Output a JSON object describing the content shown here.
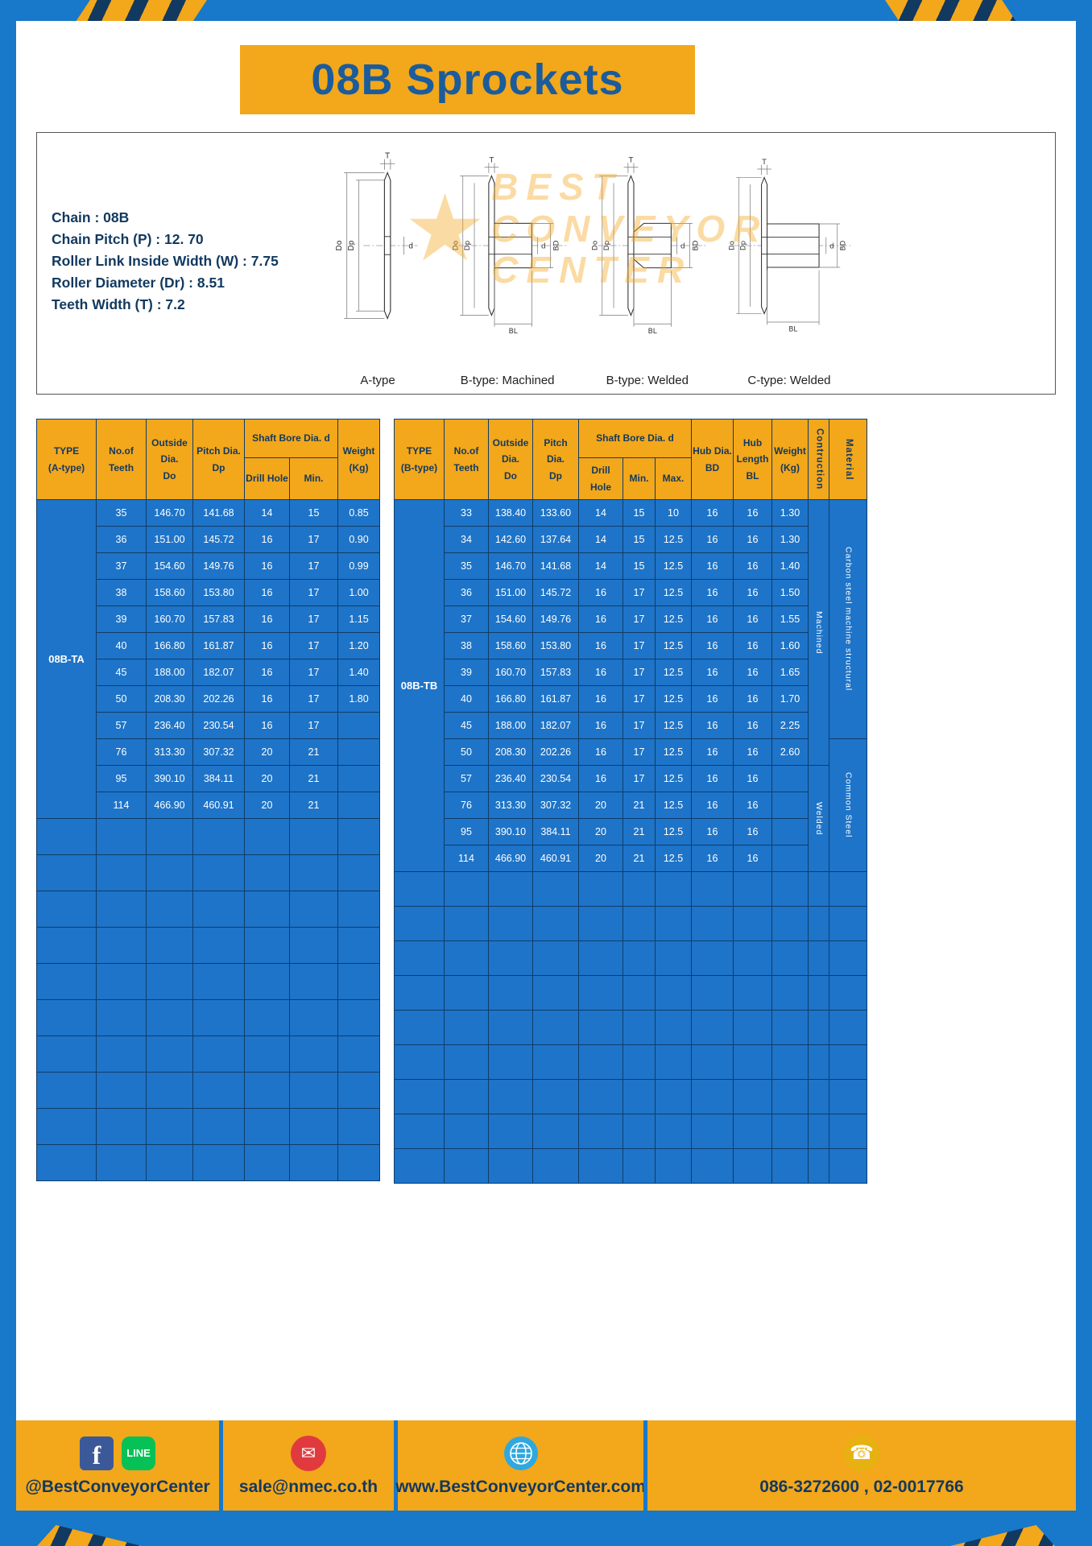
{
  "page": {
    "title": "08B Sprockets"
  },
  "specs": [
    "Chain : 08B",
    "Chain Pitch (P) : 12. 70",
    "Roller Link Inside Width (W) : 7.75",
    "Roller Diameter (Dr) : 8.51",
    "Teeth Width (T) : 7.2"
  ],
  "drawings": {
    "watermark_star": "★",
    "watermark": [
      "BEST",
      "CONVEYOR",
      "CENTER"
    ],
    "items": [
      {
        "caption": "A-type",
        "labels": [
          "T",
          "Do",
          "Dp",
          "d"
        ]
      },
      {
        "caption": "B-type: Machined",
        "labels": [
          "T",
          "Do",
          "Dp",
          "d",
          "BD",
          "BL"
        ]
      },
      {
        "caption": "B-type: Welded",
        "labels": [
          "T",
          "Do",
          "Dp",
          "d",
          "BD",
          "BL"
        ]
      },
      {
        "caption": "C-type: Welded",
        "labels": [
          "T",
          "Do",
          "Dp",
          "d",
          "BD",
          "BL"
        ]
      }
    ]
  },
  "table_a": {
    "headers": {
      "type": "TYPE\n(A-type)",
      "teeth": "No.of\nTeeth",
      "outside": "Outside\nDia.\nDo",
      "pitch": "Pitch Dia.\nDp",
      "shaft_bore": "Shaft Bore Dia. d",
      "drill": "Drill Hole",
      "min": "Min.",
      "weight": "Weight\n(Kg)"
    },
    "type_label": "08B-TA",
    "rows": [
      [
        "35",
        "146.70",
        "141.68",
        "14",
        "15",
        "0.85"
      ],
      [
        "36",
        "151.00",
        "145.72",
        "16",
        "17",
        "0.90"
      ],
      [
        "37",
        "154.60",
        "149.76",
        "16",
        "17",
        "0.99"
      ],
      [
        "38",
        "158.60",
        "153.80",
        "16",
        "17",
        "1.00"
      ],
      [
        "39",
        "160.70",
        "157.83",
        "16",
        "17",
        "1.15"
      ],
      [
        "40",
        "166.80",
        "161.87",
        "16",
        "17",
        "1.20"
      ],
      [
        "45",
        "188.00",
        "182.07",
        "16",
        "17",
        "1.40"
      ],
      [
        "50",
        "208.30",
        "202.26",
        "16",
        "17",
        "1.80"
      ],
      [
        "57",
        "236.40",
        "230.54",
        "16",
        "17",
        ""
      ],
      [
        "76",
        "313.30",
        "307.32",
        "20",
        "21",
        ""
      ],
      [
        "95",
        "390.10",
        "384.11",
        "20",
        "21",
        ""
      ],
      [
        "114",
        "466.90",
        "460.91",
        "20",
        "21",
        ""
      ]
    ],
    "empty_rows": 10
  },
  "table_b": {
    "headers": {
      "type": "TYPE\n(B-type)",
      "teeth": "No.of\nTeeth",
      "outside": "Outside\nDia.\nDo",
      "pitch": "Pitch Dia.\nDp",
      "shaft_bore": "Shaft Bore Dia. d",
      "drill": "Drill Hole",
      "min": "Min.",
      "max": "Max.",
      "hub_dia": "Hub Dia.\nBD",
      "hub_len": "Hub\nLength\nBL",
      "weight": "Weight\n(Kg)",
      "construction": "Contruction",
      "material": "Material"
    },
    "type_label": "08B-TB",
    "rows": [
      [
        "33",
        "138.40",
        "133.60",
        "14",
        "15",
        "10",
        "16",
        "16",
        "1.30"
      ],
      [
        "34",
        "142.60",
        "137.64",
        "14",
        "15",
        "12.5",
        "16",
        "16",
        "1.30"
      ],
      [
        "35",
        "146.70",
        "141.68",
        "14",
        "15",
        "12.5",
        "16",
        "16",
        "1.40"
      ],
      [
        "36",
        "151.00",
        "145.72",
        "16",
        "17",
        "12.5",
        "16",
        "16",
        "1.50"
      ],
      [
        "37",
        "154.60",
        "149.76",
        "16",
        "17",
        "12.5",
        "16",
        "16",
        "1.55"
      ],
      [
        "38",
        "158.60",
        "153.80",
        "16",
        "17",
        "12.5",
        "16",
        "16",
        "1.60"
      ],
      [
        "39",
        "160.70",
        "157.83",
        "16",
        "17",
        "12.5",
        "16",
        "16",
        "1.65"
      ],
      [
        "40",
        "166.80",
        "161.87",
        "16",
        "17",
        "12.5",
        "16",
        "16",
        "1.70"
      ],
      [
        "45",
        "188.00",
        "182.07",
        "16",
        "17",
        "12.5",
        "16",
        "16",
        "2.25"
      ],
      [
        "50",
        "208.30",
        "202.26",
        "16",
        "17",
        "12.5",
        "16",
        "16",
        "2.60"
      ],
      [
        "57",
        "236.40",
        "230.54",
        "16",
        "17",
        "12.5",
        "16",
        "16",
        ""
      ],
      [
        "76",
        "313.30",
        "307.32",
        "20",
        "21",
        "12.5",
        "16",
        "16",
        ""
      ],
      [
        "95",
        "390.10",
        "384.11",
        "20",
        "21",
        "12.5",
        "16",
        "16",
        ""
      ],
      [
        "114",
        "466.90",
        "460.91",
        "20",
        "21",
        "12.5",
        "16",
        "16",
        ""
      ]
    ],
    "groups": [
      {
        "name": "construction",
        "segments": [
          {
            "label": "Machined",
            "rows": 10
          },
          {
            "label": "Welded",
            "rows": 4
          }
        ]
      },
      {
        "name": "material",
        "segments": [
          {
            "label": "Carbon steel machine structural",
            "rows": 9
          },
          {
            "label": "Common Steel",
            "rows": 5
          }
        ]
      }
    ],
    "empty_rows": 9
  },
  "footer": {
    "icons": {
      "facebook_glyph": "f",
      "line_glyph": "LINE",
      "mail_glyph": "✉",
      "phone_glyph": "☎"
    },
    "sections": [
      {
        "text": "@BestConveyorCenter"
      },
      {
        "text": "sale@nmec.co.th"
      },
      {
        "text": "www.BestConveyorCenter.com"
      },
      {
        "text": "086-3272600 , 02-0017766"
      }
    ]
  }
}
